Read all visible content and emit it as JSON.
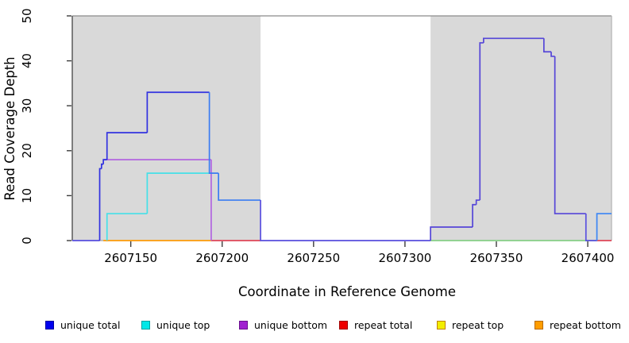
{
  "chart_data": {
    "type": "step-line",
    "title": "",
    "xlabel": "Coordinate in Reference Genome",
    "ylabel": "Read Coverage Depth",
    "xlim": [
      2607118,
      2607413
    ],
    "ylim": [
      0,
      50
    ],
    "xticks": [
      2607150,
      2607200,
      2607250,
      2607300,
      2607350,
      2607400
    ],
    "yticks": [
      0,
      10,
      20,
      30,
      40,
      50
    ],
    "grid": false,
    "legend_position": "bottom",
    "plot_background": "#ffffff",
    "shaded_regions": [
      {
        "x0": 2607118,
        "x1": 2607221,
        "color": "#d9d9d9"
      },
      {
        "x0": 2607314,
        "x1": 2607413,
        "color": "#d9d9d9"
      }
    ],
    "series": [
      {
        "name": "unique total",
        "color": "#3232e0",
        "runs": [
          {
            "x0": 2607118,
            "x1": 2607133,
            "y": 0,
            "color": "#5a50e0"
          },
          {
            "x0": 2607133,
            "x1": 2607134,
            "y": 16,
            "color": "#3232e0"
          },
          {
            "x0": 2607134,
            "x1": 2607135,
            "y": 17,
            "color": "#3232e0"
          },
          {
            "x0": 2607135,
            "x1": 2607137,
            "y": 18,
            "color": "#3232e0"
          },
          {
            "x0": 2607137,
            "x1": 2607159,
            "y": 24,
            "color": "#3232e0"
          },
          {
            "x0": 2607159,
            "x1": 2607193,
            "y": 33,
            "color": "#3232e0"
          },
          {
            "x0": 2607193,
            "x1": 2607198,
            "y": 15,
            "color": "#3b7cf2"
          },
          {
            "x0": 2607198,
            "x1": 2607221,
            "y": 9,
            "color": "#3b7cf2"
          },
          {
            "x0": 2607221,
            "x1": 2607314,
            "y": 0,
            "color": "#5a50e0"
          },
          {
            "x0": 2607314,
            "x1": 2607337,
            "y": 3,
            "color": "#5546d8"
          },
          {
            "x0": 2607337,
            "x1": 2607339,
            "y": 8,
            "color": "#5546d8"
          },
          {
            "x0": 2607339,
            "x1": 2607341,
            "y": 9,
            "color": "#5546d8"
          },
          {
            "x0": 2607341,
            "x1": 2607343,
            "y": 44,
            "color": "#5546d8"
          },
          {
            "x0": 2607343,
            "x1": 2607376,
            "y": 45,
            "color": "#5546d8"
          },
          {
            "x0": 2607376,
            "x1": 2607380,
            "y": 42,
            "color": "#5546d8"
          },
          {
            "x0": 2607380,
            "x1": 2607382,
            "y": 41,
            "color": "#5546d8"
          },
          {
            "x0": 2607382,
            "x1": 2607399,
            "y": 6,
            "color": "#5546d8"
          },
          {
            "x0": 2607399,
            "x1": 2607405,
            "y": 0,
            "color": "#5a50e0"
          },
          {
            "x0": 2607405,
            "x1": 2607413,
            "y": 6,
            "color": "#3b86f5"
          }
        ]
      },
      {
        "name": "unique top",
        "color": "#45e0e8",
        "runs": [
          {
            "x0": 2607137,
            "x1": 2607137,
            "y": 0
          },
          {
            "x0": 2607137,
            "x1": 2607159,
            "y": 6
          },
          {
            "x0": 2607159,
            "x1": 2607193,
            "y": 15
          }
        ]
      },
      {
        "name": "unique bottom",
        "color": "#b264e0",
        "runs": [
          {
            "x0": 2607135,
            "x1": 2607194,
            "y": 18
          },
          {
            "x0": 2607194,
            "x1": 2607194,
            "y": 0
          }
        ]
      },
      {
        "name": "repeat total",
        "color": "#e0485a",
        "runs": [
          {
            "x0": 2607194,
            "x1": 2607221,
            "y": 0
          },
          {
            "x0": 2607405,
            "x1": 2607413,
            "y": 0,
            "gap": true
          }
        ]
      },
      {
        "name": "repeat top",
        "color": "#f2ee00",
        "runs": []
      },
      {
        "name": "repeat bottom",
        "color": "#ff9d0a",
        "runs": [
          {
            "x0": 2607135,
            "x1": 2607194,
            "y": 0
          }
        ]
      }
    ],
    "baseline_segments": [
      {
        "x0": 2607314,
        "x1": 2607405,
        "y": 0,
        "color": "#7ccf7c"
      }
    ],
    "legend": [
      {
        "label": "unique total",
        "color": "#0000ee",
        "border": "#0000a0"
      },
      {
        "label": "unique top",
        "color": "#00e8e8",
        "border": "#00a0a0"
      },
      {
        "label": "unique bottom",
        "color": "#a020d0",
        "border": "#6a0f8e"
      },
      {
        "label": "repeat total",
        "color": "#ee0000",
        "border": "#a00000"
      },
      {
        "label": "repeat top",
        "color": "#f2ee00",
        "border": "#c08000"
      },
      {
        "label": "repeat bottom",
        "color": "#ff9d00",
        "border": "#b86a00"
      }
    ]
  }
}
